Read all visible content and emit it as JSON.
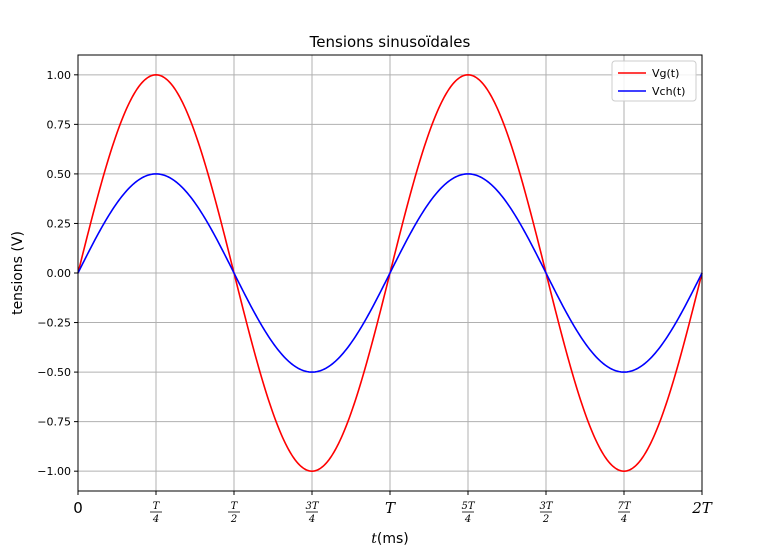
{
  "chart_data": {
    "type": "line",
    "title": "Tensions sinusoïdales",
    "xlabel_italic": "t",
    "xlabel_unit": "(ms)",
    "ylabel": "tensions (V)",
    "xlim": [
      0,
      2
    ],
    "ylim": [
      -1.1,
      1.1
    ],
    "x_unit": "T",
    "grid": true,
    "legend_position": "top-right",
    "x_ticks": [
      {
        "value": 0,
        "kind": "plain",
        "text": "0"
      },
      {
        "value": 0.25,
        "kind": "frac",
        "num": "T",
        "den": "4"
      },
      {
        "value": 0.5,
        "kind": "frac",
        "num": "T",
        "den": "2"
      },
      {
        "value": 0.75,
        "kind": "frac",
        "num": "3T",
        "den": "4"
      },
      {
        "value": 1.0,
        "kind": "plain",
        "text": "T"
      },
      {
        "value": 1.25,
        "kind": "frac",
        "num": "5T",
        "den": "4"
      },
      {
        "value": 1.5,
        "kind": "frac",
        "num": "3T",
        "den": "2"
      },
      {
        "value": 1.75,
        "kind": "frac",
        "num": "7T",
        "den": "4"
      },
      {
        "value": 2.0,
        "kind": "plain",
        "text": "2T"
      }
    ],
    "y_ticks": [
      {
        "value": 1.0,
        "label": "1.00"
      },
      {
        "value": 0.75,
        "label": "0.75"
      },
      {
        "value": 0.5,
        "label": "0.50"
      },
      {
        "value": 0.25,
        "label": "0.25"
      },
      {
        "value": 0.0,
        "label": "0.00"
      },
      {
        "value": -0.25,
        "label": "−0.25"
      },
      {
        "value": -0.5,
        "label": "−0.50"
      },
      {
        "value": -0.75,
        "label": "−0.75"
      },
      {
        "value": -1.0,
        "label": "−1.00"
      }
    ],
    "series": [
      {
        "name": "Vg(t)",
        "color": "#ff0000",
        "amplitude": 1.0,
        "x": [
          0,
          0.125,
          0.25,
          0.375,
          0.5,
          0.625,
          0.75,
          0.875,
          1.0,
          1.125,
          1.25,
          1.375,
          1.5,
          1.625,
          1.75,
          1.875,
          2.0
        ],
        "y": [
          0,
          0.707,
          1.0,
          0.707,
          0,
          -0.707,
          -1.0,
          -0.707,
          0,
          0.707,
          1.0,
          0.707,
          0,
          -0.707,
          -1.0,
          -0.707,
          0
        ]
      },
      {
        "name": "Vch(t)",
        "color": "#0000ff",
        "amplitude": 0.5,
        "x": [
          0,
          0.125,
          0.25,
          0.375,
          0.5,
          0.625,
          0.75,
          0.875,
          1.0,
          1.125,
          1.25,
          1.375,
          1.5,
          1.625,
          1.75,
          1.875,
          2.0
        ],
        "y": [
          0,
          0.354,
          0.5,
          0.354,
          0,
          -0.354,
          -0.5,
          -0.354,
          0,
          0.354,
          0.5,
          0.354,
          0,
          -0.354,
          -0.5,
          -0.354,
          0
        ]
      }
    ]
  }
}
